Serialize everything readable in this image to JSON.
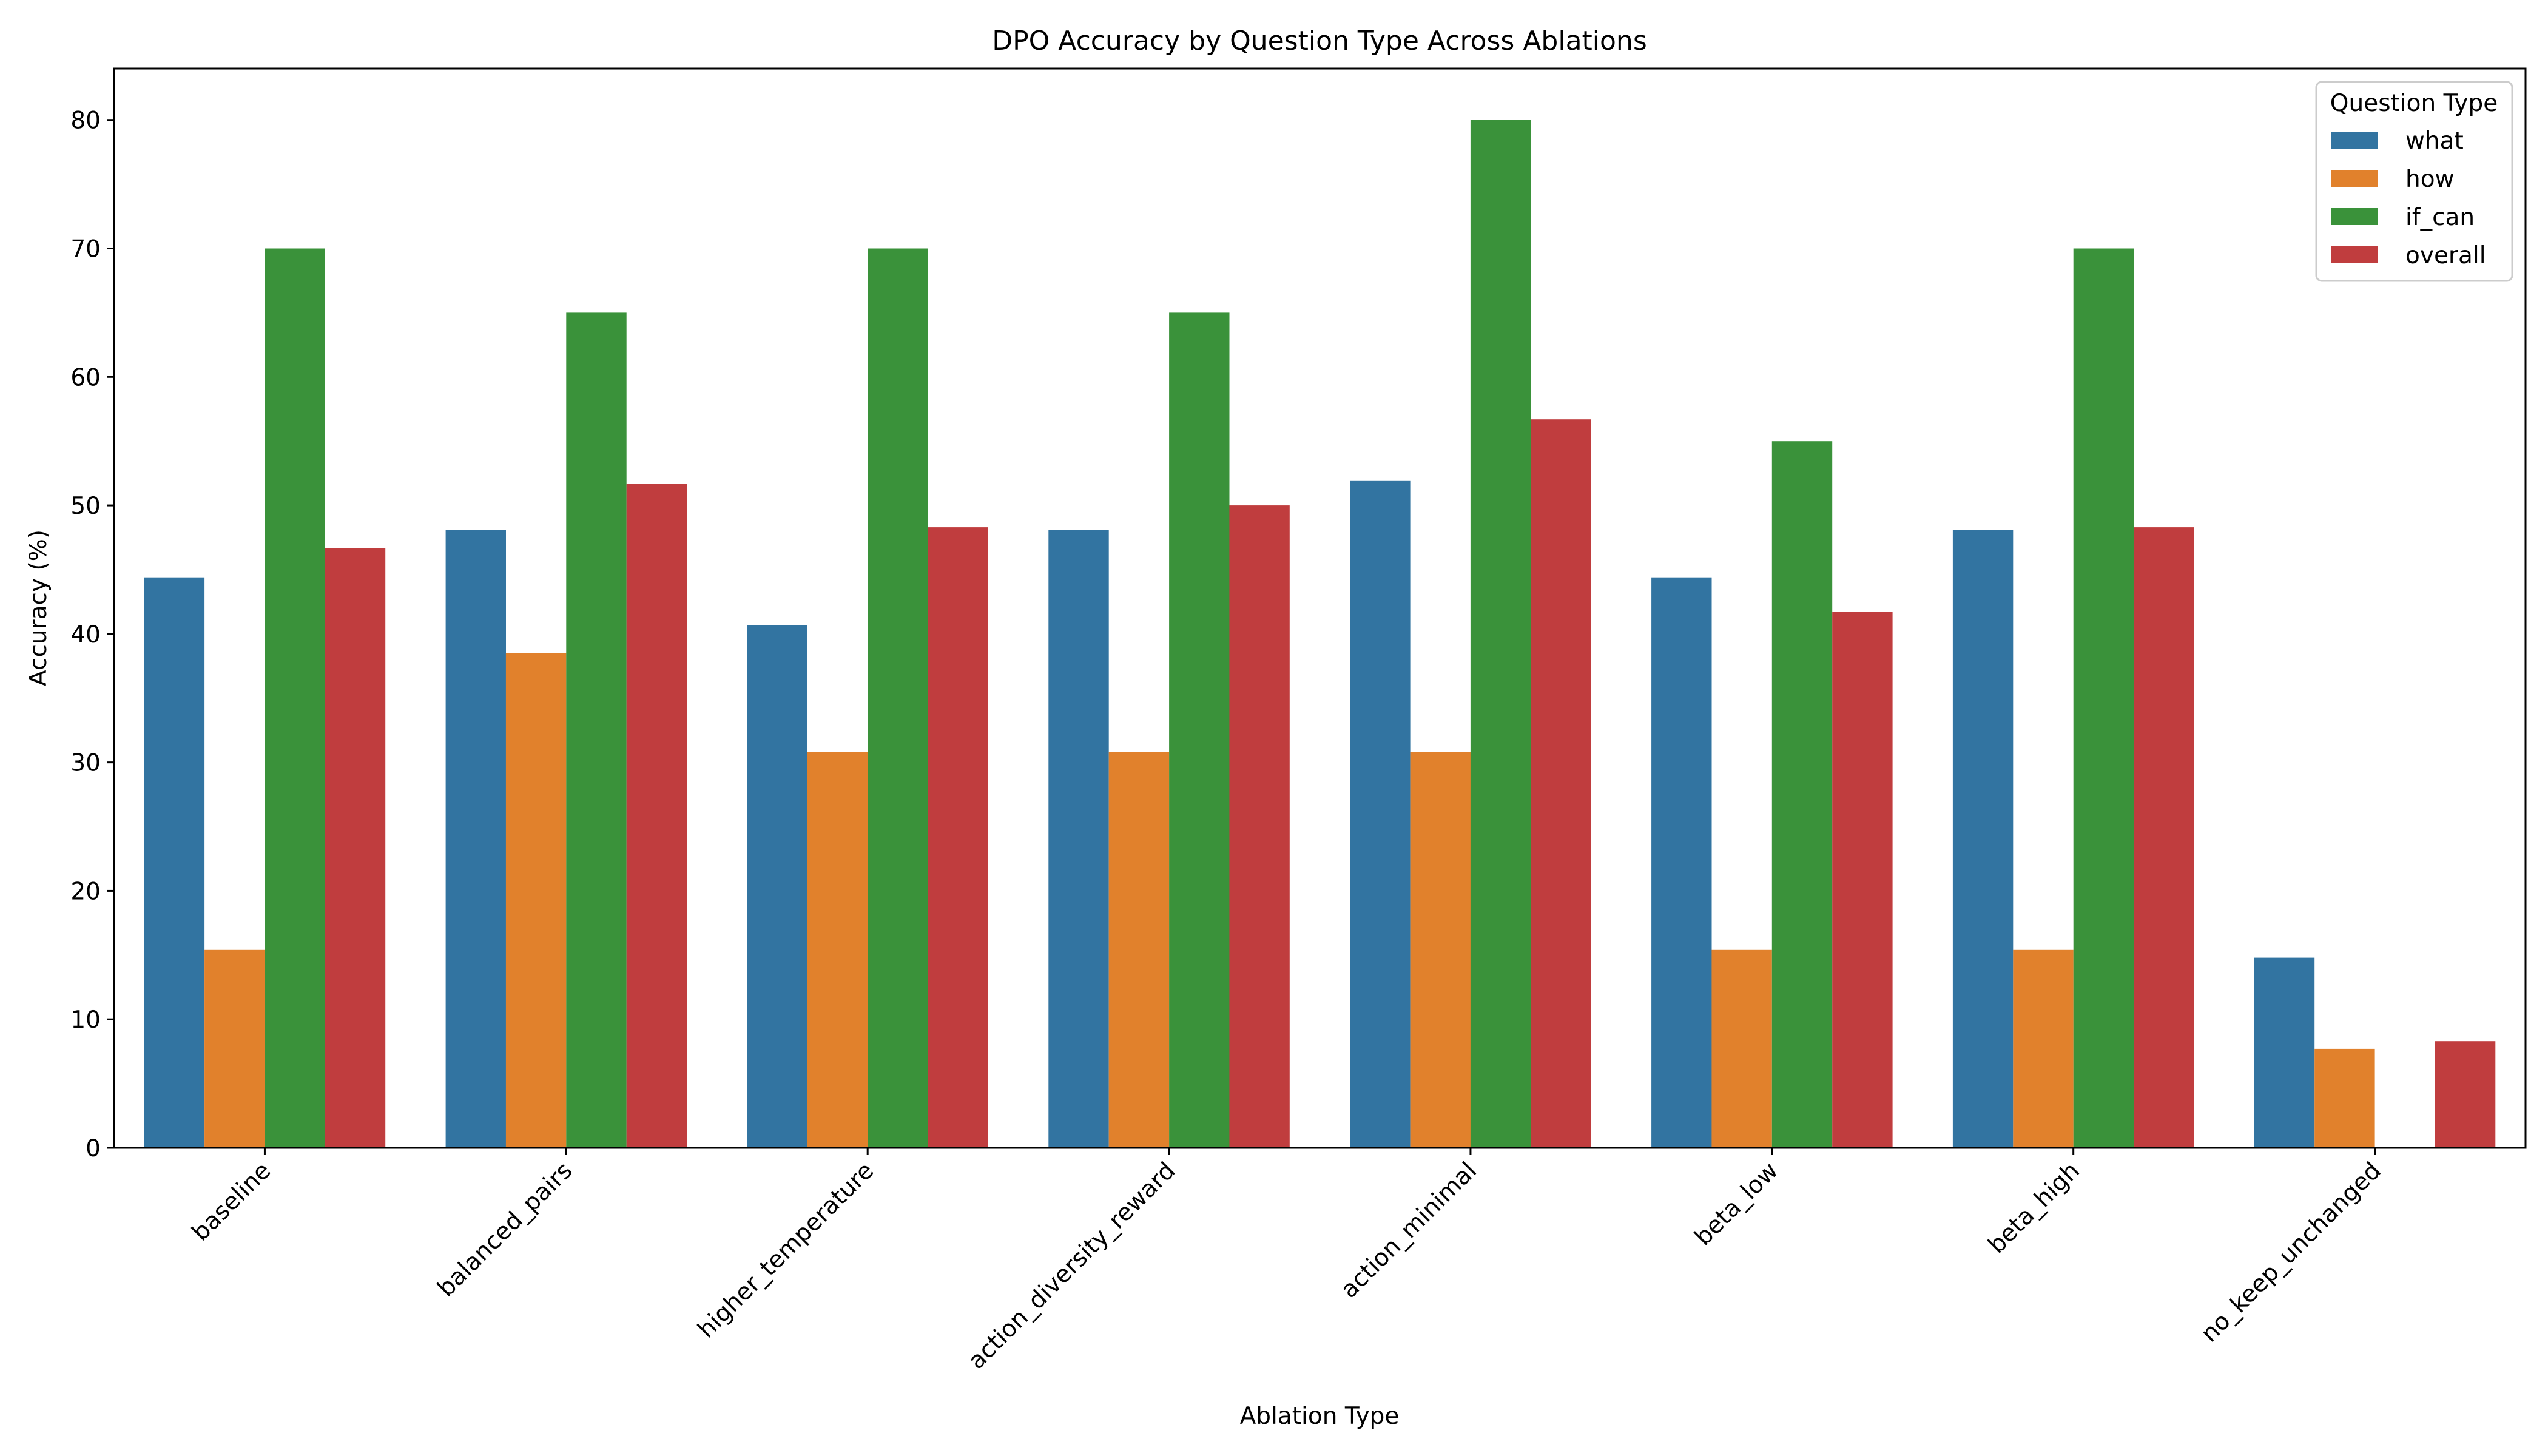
{
  "chart_data": {
    "type": "bar",
    "title": "DPO Accuracy by Question Type Across Ablations",
    "xlabel": "Ablation Type",
    "ylabel": "Accuracy (%)",
    "ylim": [
      0,
      84
    ],
    "yticks": [
      0,
      10,
      20,
      30,
      40,
      50,
      60,
      70,
      80
    ],
    "grid": false,
    "legend": {
      "title": "Question Type",
      "placement": "top-right"
    },
    "categories": [
      "baseline",
      "balanced_pairs",
      "higher_temperature",
      "action_diversity_reward",
      "action_minimal",
      "beta_low",
      "beta_high",
      "no_keep_unchanged"
    ],
    "series": [
      {
        "name": "what",
        "color": "#3274a1",
        "values": [
          44.4,
          48.1,
          40.7,
          48.1,
          51.9,
          44.4,
          48.1,
          14.8
        ]
      },
      {
        "name": "how",
        "color": "#e1812c",
        "values": [
          15.4,
          38.5,
          30.8,
          30.8,
          30.8,
          15.4,
          15.4,
          7.7
        ]
      },
      {
        "name": "if_can",
        "color": "#3a923a",
        "values": [
          70,
          65,
          70,
          65,
          80,
          55,
          70,
          0
        ]
      },
      {
        "name": "overall",
        "color": "#c03d3e",
        "values": [
          46.7,
          51.7,
          48.3,
          50.0,
          56.7,
          41.7,
          48.3,
          8.3
        ]
      }
    ]
  }
}
